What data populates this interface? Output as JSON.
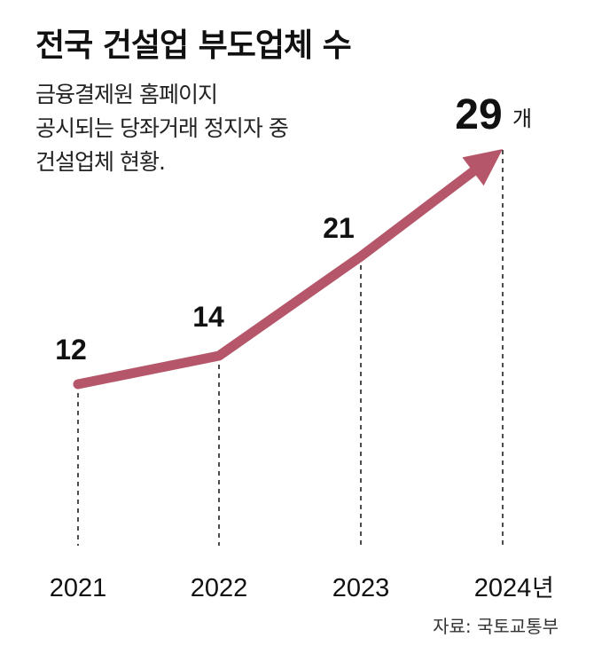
{
  "chart_data": {
    "type": "line",
    "title": "전국 건설업 부도업체 수",
    "subtitle_lines": [
      "금융결제원 홈페이지",
      "공시되는 당좌거래 정지자 중",
      "건설업체 현황."
    ],
    "categories": [
      "2021",
      "2022",
      "2023",
      "2024"
    ],
    "year_suffix": "년",
    "values": [
      12,
      14,
      21,
      29
    ],
    "value_labels": [
      "12",
      "14",
      "21",
      "29"
    ],
    "unit": "개",
    "source": "자료: 국토교통부",
    "line_color": "#b5566a",
    "xlabel": "",
    "ylabel": ""
  }
}
